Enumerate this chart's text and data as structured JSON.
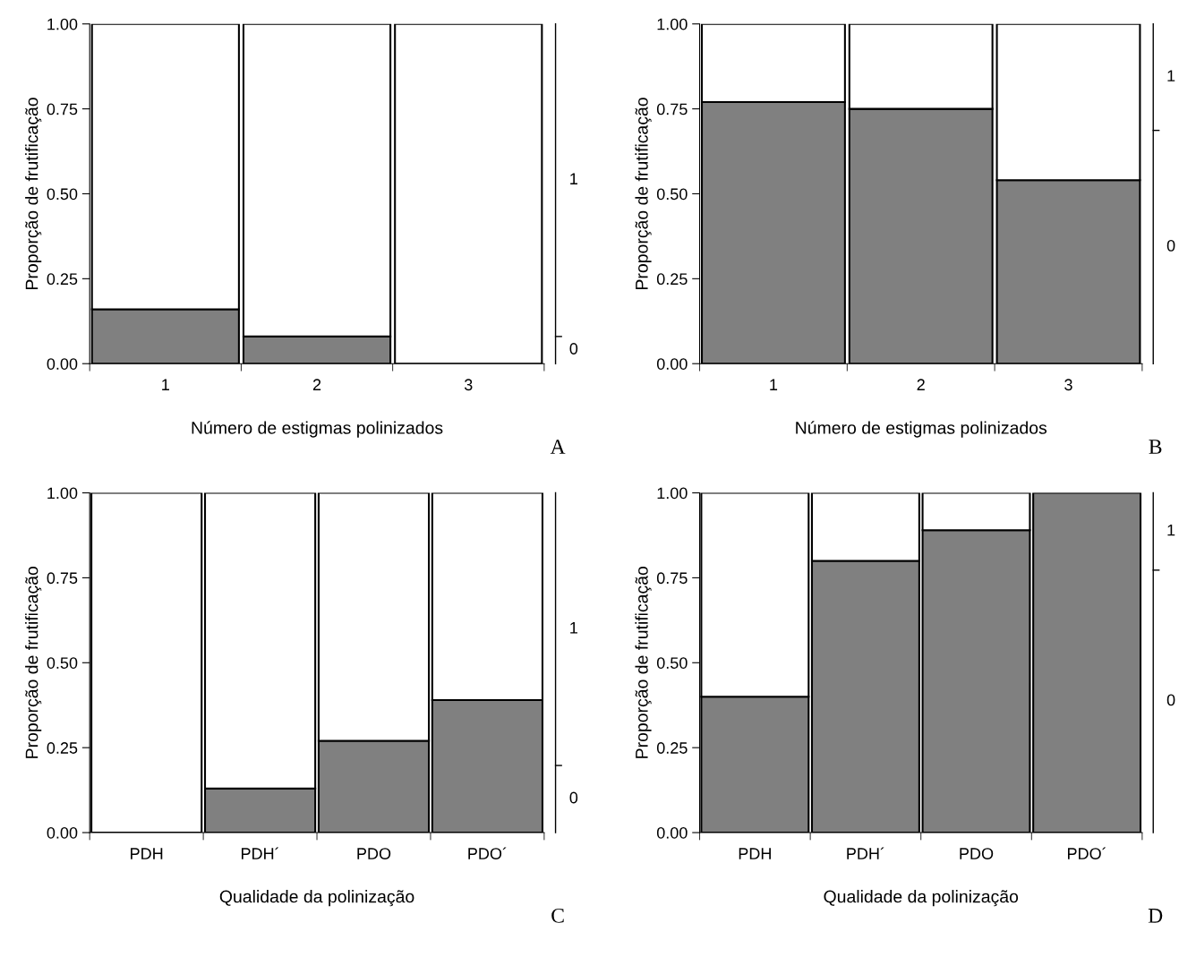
{
  "chart_data": [
    {
      "type": "bar",
      "stacked": true,
      "xlabel": "Número de estigmas polinizados",
      "ylabel": "Proporção de frutificação",
      "categories": [
        "1",
        "2",
        "3"
      ],
      "ylim": [
        0,
        1
      ],
      "yticks": [
        {
          "value": 0,
          "label": "0.00"
        },
        {
          "value": 0.25,
          "label": "0.25"
        },
        {
          "value": 0.5,
          "label": "0.50"
        },
        {
          "value": 0.75,
          "label": "0.75"
        },
        {
          "value": 1,
          "label": "1.00"
        }
      ],
      "annotations": [
        "A",
        "0",
        "1"
      ],
      "series": [
        {
          "color": "#808080",
          "values": [
            0.16,
            0.08,
            0
          ]
        },
        {
          "color": "#ffffff",
          "values": [
            0.84,
            0.92,
            1
          ]
        }
      ]
    },
    {
      "type": "bar",
      "stacked": true,
      "xlabel": "Número de estigmas polinizados",
      "ylabel": "Proporção de frutificação",
      "categories": [
        "1",
        "2",
        "3"
      ],
      "ylim": [
        0,
        1
      ],
      "yticks": [
        {
          "value": 0,
          "label": "0.00"
        },
        {
          "value": 0.25,
          "label": "0.25"
        },
        {
          "value": 0.5,
          "label": "0.50"
        },
        {
          "value": 0.75,
          "label": "0.75"
        },
        {
          "value": 1,
          "label": "1.00"
        }
      ],
      "annotations": [
        "B",
        "0",
        "1"
      ],
      "series": [
        {
          "color": "#808080",
          "values": [
            0.77,
            0.75,
            0.54
          ]
        },
        {
          "color": "#ffffff",
          "values": [
            0.23,
            0.25,
            0.46
          ]
        }
      ]
    },
    {
      "type": "bar",
      "stacked": true,
      "xlabel": "Qualidade da polinização",
      "ylabel": "Proporção de frutificação",
      "categories": [
        "PDH",
        "PDH´",
        "PDO",
        "PDO´"
      ],
      "ylim": [
        0,
        1
      ],
      "yticks": [
        {
          "value": 0,
          "label": "0.00"
        },
        {
          "value": 0.25,
          "label": "0.25"
        },
        {
          "value": 0.5,
          "label": "0.50"
        },
        {
          "value": 0.75,
          "label": "0.75"
        },
        {
          "value": 1,
          "label": "1.00"
        }
      ],
      "annotations": [
        "C",
        "0",
        "1"
      ],
      "series": [
        {
          "color": "#808080",
          "values": [
            0,
            0.13,
            0.27,
            0.39
          ]
        },
        {
          "color": "#ffffff",
          "values": [
            1,
            0.87,
            0.73,
            0.61
          ]
        }
      ]
    },
    {
      "type": "bar",
      "stacked": true,
      "xlabel": "Qualidade da polinização",
      "ylabel": "Proporção de frutificação",
      "categories": [
        "PDH",
        "PDH´",
        "PDO",
        "PDO´"
      ],
      "ylim": [
        0,
        1
      ],
      "yticks": [
        {
          "value": 0,
          "label": "0.00"
        },
        {
          "value": 0.25,
          "label": "0.25"
        },
        {
          "value": 0.5,
          "label": "0.50"
        },
        {
          "value": 0.75,
          "label": "0.75"
        },
        {
          "value": 1,
          "label": "1.00"
        }
      ],
      "annotations": [
        "D",
        "0",
        "1"
      ],
      "series": [
        {
          "color": "#808080",
          "values": [
            0.4,
            0.8,
            0.89,
            1
          ]
        },
        {
          "color": "#ffffff",
          "values": [
            0.6,
            0.2,
            0.11,
            0
          ]
        }
      ]
    }
  ]
}
